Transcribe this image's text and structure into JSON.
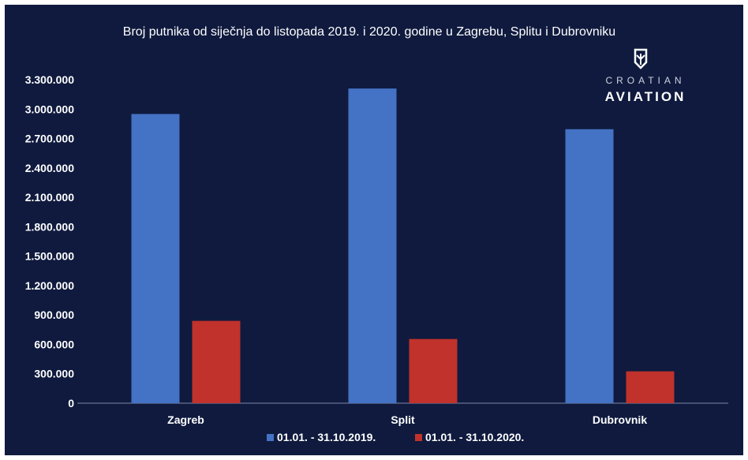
{
  "chart_data": {
    "type": "bar",
    "title": "Broj putnika od siječnja do listopada 2019. i 2020. godine u Zagrebu, Splitu i Dubrovniku",
    "categories": [
      "Zagreb",
      "Split",
      "Dubrovnik"
    ],
    "series": [
      {
        "name": "01.01. - 31.10.2019.",
        "color": "#4472c4",
        "values": [
          2950000,
          3210000,
          2795000
        ]
      },
      {
        "name": "01.01. - 31.10.2020.",
        "color": "#c0322b",
        "values": [
          840000,
          655000,
          325000
        ]
      }
    ],
    "ylim": [
      0,
      3300000
    ],
    "yticks": [
      0,
      300000,
      600000,
      900000,
      1200000,
      1500000,
      1800000,
      2100000,
      2400000,
      2700000,
      3000000,
      3300000
    ],
    "ytick_labels": [
      "0",
      "300.000",
      "600.000",
      "900.000",
      "1.200.000",
      "1.500.000",
      "1.800.000",
      "2.100.000",
      "2.400.000",
      "2.700.000",
      "3.000.000",
      "3.300.000"
    ],
    "grid": false,
    "legend_position": "bottom",
    "xlabel": "",
    "ylabel": ""
  },
  "logo": {
    "line1": "CROATIAN",
    "line2": "AVIATION",
    "icon": "croatian-aviation-logo-icon"
  },
  "colors": {
    "background": "#0f1a3e",
    "text": "#ffffff"
  }
}
